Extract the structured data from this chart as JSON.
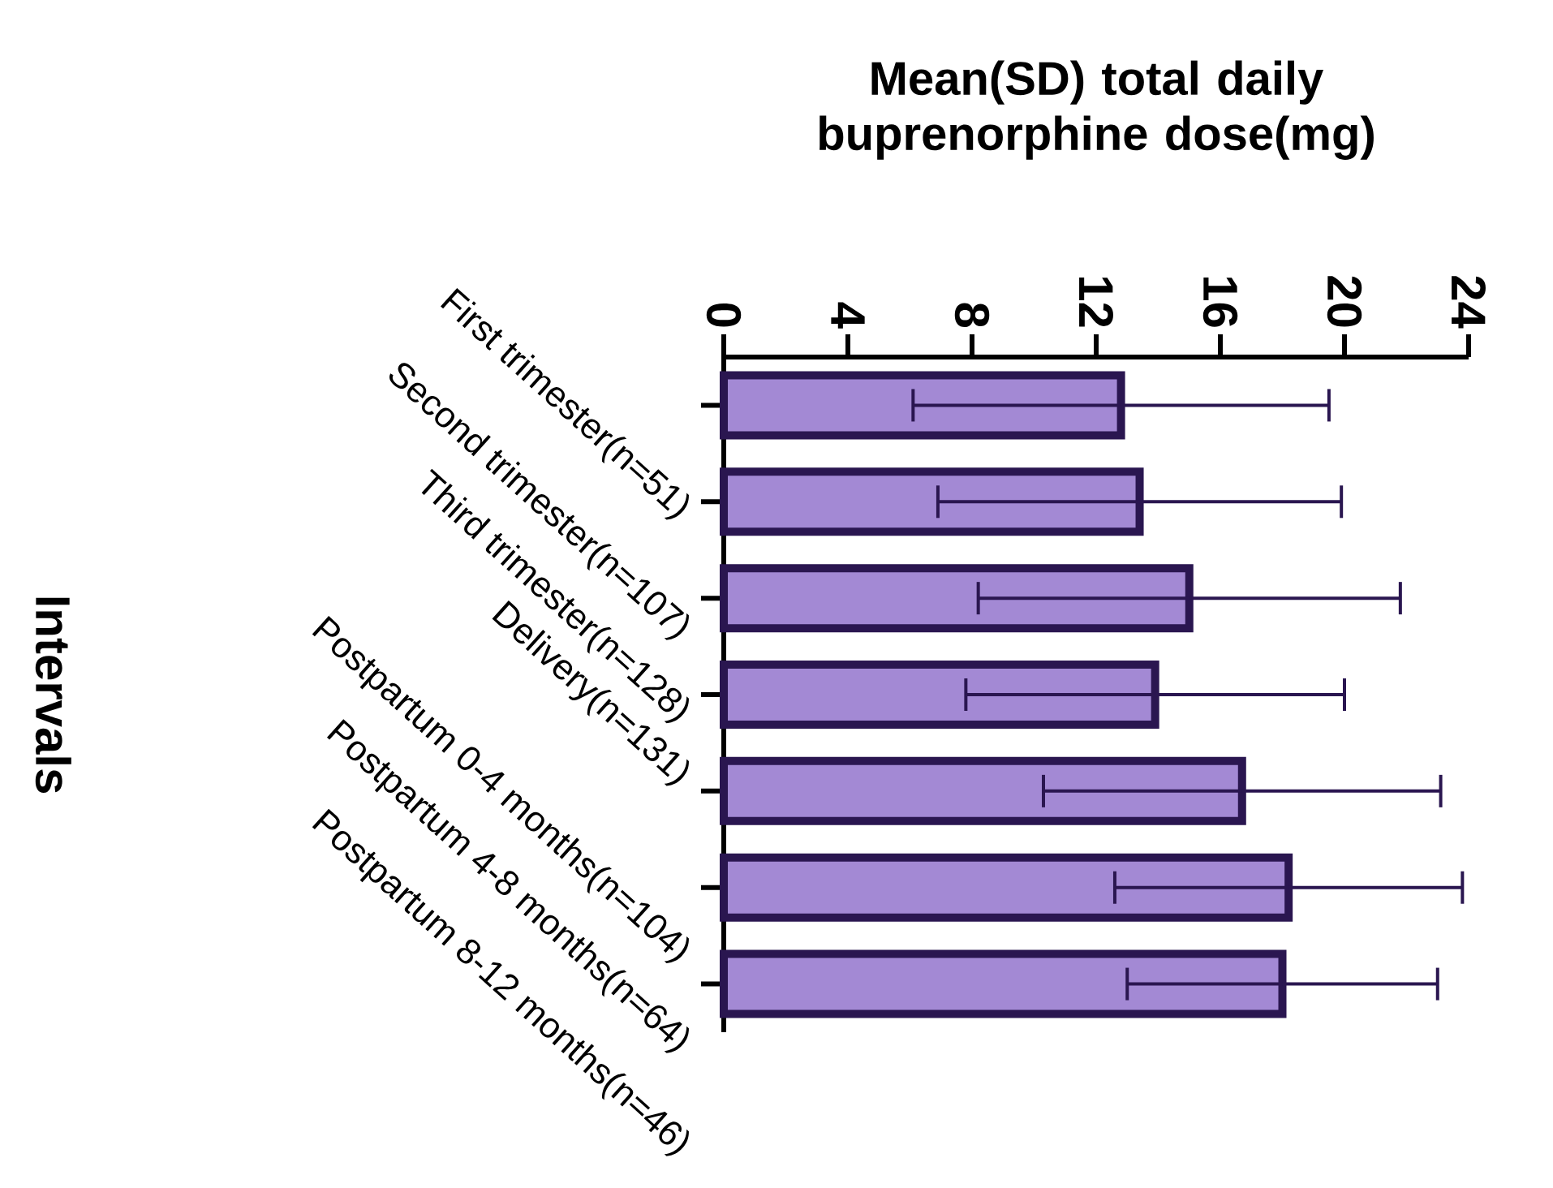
{
  "chart_data": {
    "type": "bar",
    "orientation": "horizontal",
    "xlabel": "Mean(SD) total daily buprenorphine dose(mg)",
    "ylabel": "Intervals",
    "categories": [
      "First trimester(n=51)",
      "Second trimester(n=107)",
      "Third trimester(n=128)",
      "Delivery(n=131)",
      "Postpartum 0-4 months(n=104)",
      "Postpartum 4-8 months(n=64)",
      "Postpartum 8-12 months(n=46)"
    ],
    "values": [
      12.8,
      13.4,
      15.0,
      13.9,
      16.7,
      18.2,
      18.0
    ],
    "errors": [
      6.7,
      6.5,
      6.8,
      6.1,
      6.4,
      5.6,
      5.0
    ],
    "color": "#a389d4",
    "xlim": [
      0,
      24
    ],
    "xticks": [
      0,
      4,
      8,
      12,
      16,
      20,
      24
    ]
  }
}
